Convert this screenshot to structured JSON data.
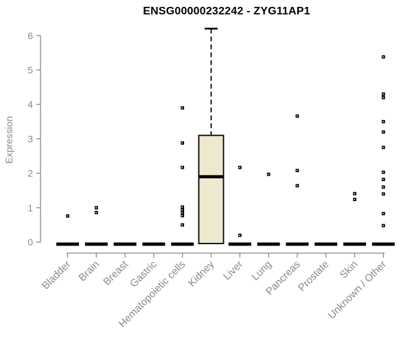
{
  "title": "ENSG00000232242 - ZYG11AP1",
  "chart_data": {
    "type": "boxplot",
    "title": "ENSG00000232242 - ZYG11AP1",
    "xlabel": "",
    "ylabel": "Expression",
    "ylim": [
      0,
      6.2
    ],
    "yticks": [
      0,
      1,
      2,
      3,
      4,
      5,
      6
    ],
    "grid": false,
    "categories": [
      "Bladder",
      "Brain",
      "Breast",
      "Gastric",
      "Hematopoietic cells",
      "Kidney",
      "Liver",
      "Lung",
      "Pancreas",
      "Prostate",
      "Skin",
      "Unknown / Other"
    ],
    "boxes": [
      {
        "category": "Bladder",
        "whisker_low": 0,
        "q1": 0,
        "median": 0,
        "q3": 0,
        "whisker_high": 0,
        "outliers": [
          0.76
        ]
      },
      {
        "category": "Brain",
        "whisker_low": 0,
        "q1": 0,
        "median": 0,
        "q3": 0,
        "whisker_high": 0,
        "outliers": [
          1.0,
          0.86
        ]
      },
      {
        "category": "Breast",
        "whisker_low": 0,
        "q1": 0,
        "median": 0,
        "q3": 0,
        "whisker_high": 0,
        "outliers": []
      },
      {
        "category": "Gastric",
        "whisker_low": 0,
        "q1": 0,
        "median": 0,
        "q3": 0,
        "whisker_high": 0,
        "outliers": []
      },
      {
        "category": "Hematopoietic cells",
        "whisker_low": 0,
        "q1": 0,
        "median": 0,
        "q3": 0,
        "whisker_high": 0,
        "outliers": [
          3.9,
          2.88,
          2.17,
          1.02,
          0.93,
          0.85,
          0.77,
          0.5
        ]
      },
      {
        "category": "Kidney",
        "whisker_low": 0,
        "q1": 0,
        "median": 1.9,
        "q3": 3.1,
        "whisker_high": 6.2,
        "outliers": []
      },
      {
        "category": "Liver",
        "whisker_low": 0,
        "q1": 0,
        "median": 0,
        "q3": 0,
        "whisker_high": 0,
        "outliers": [
          2.17,
          0.2
        ]
      },
      {
        "category": "Lung",
        "whisker_low": 0,
        "q1": 0,
        "median": 0,
        "q3": 0,
        "whisker_high": 0,
        "outliers": [
          1.97
        ]
      },
      {
        "category": "Pancreas",
        "whisker_low": 0,
        "q1": 0,
        "median": 0,
        "q3": 0,
        "whisker_high": 0,
        "outliers": [
          3.66,
          2.08,
          1.64
        ]
      },
      {
        "category": "Prostate",
        "whisker_low": 0,
        "q1": 0,
        "median": 0,
        "q3": 0,
        "whisker_high": 0,
        "outliers": []
      },
      {
        "category": "Skin",
        "whisker_low": 0,
        "q1": 0,
        "median": 0,
        "q3": 0,
        "whisker_high": 0,
        "outliers": [
          1.41,
          1.24
        ]
      },
      {
        "category": "Unknown / Other",
        "whisker_low": 0,
        "q1": 0,
        "median": 0,
        "q3": 0,
        "whisker_high": 0,
        "outliers": [
          5.38,
          4.3,
          4.2,
          3.5,
          3.2,
          2.75,
          2.03,
          1.82,
          1.6,
          1.4,
          0.83,
          0.48
        ]
      }
    ],
    "colors": {
      "box_fill": "#EDE8CE",
      "line": "#000000",
      "axis": "#888888",
      "muted_text": "#8A8A8A",
      "title_text": "#000000",
      "background": "#FFFFFF"
    },
    "legend": null
  }
}
